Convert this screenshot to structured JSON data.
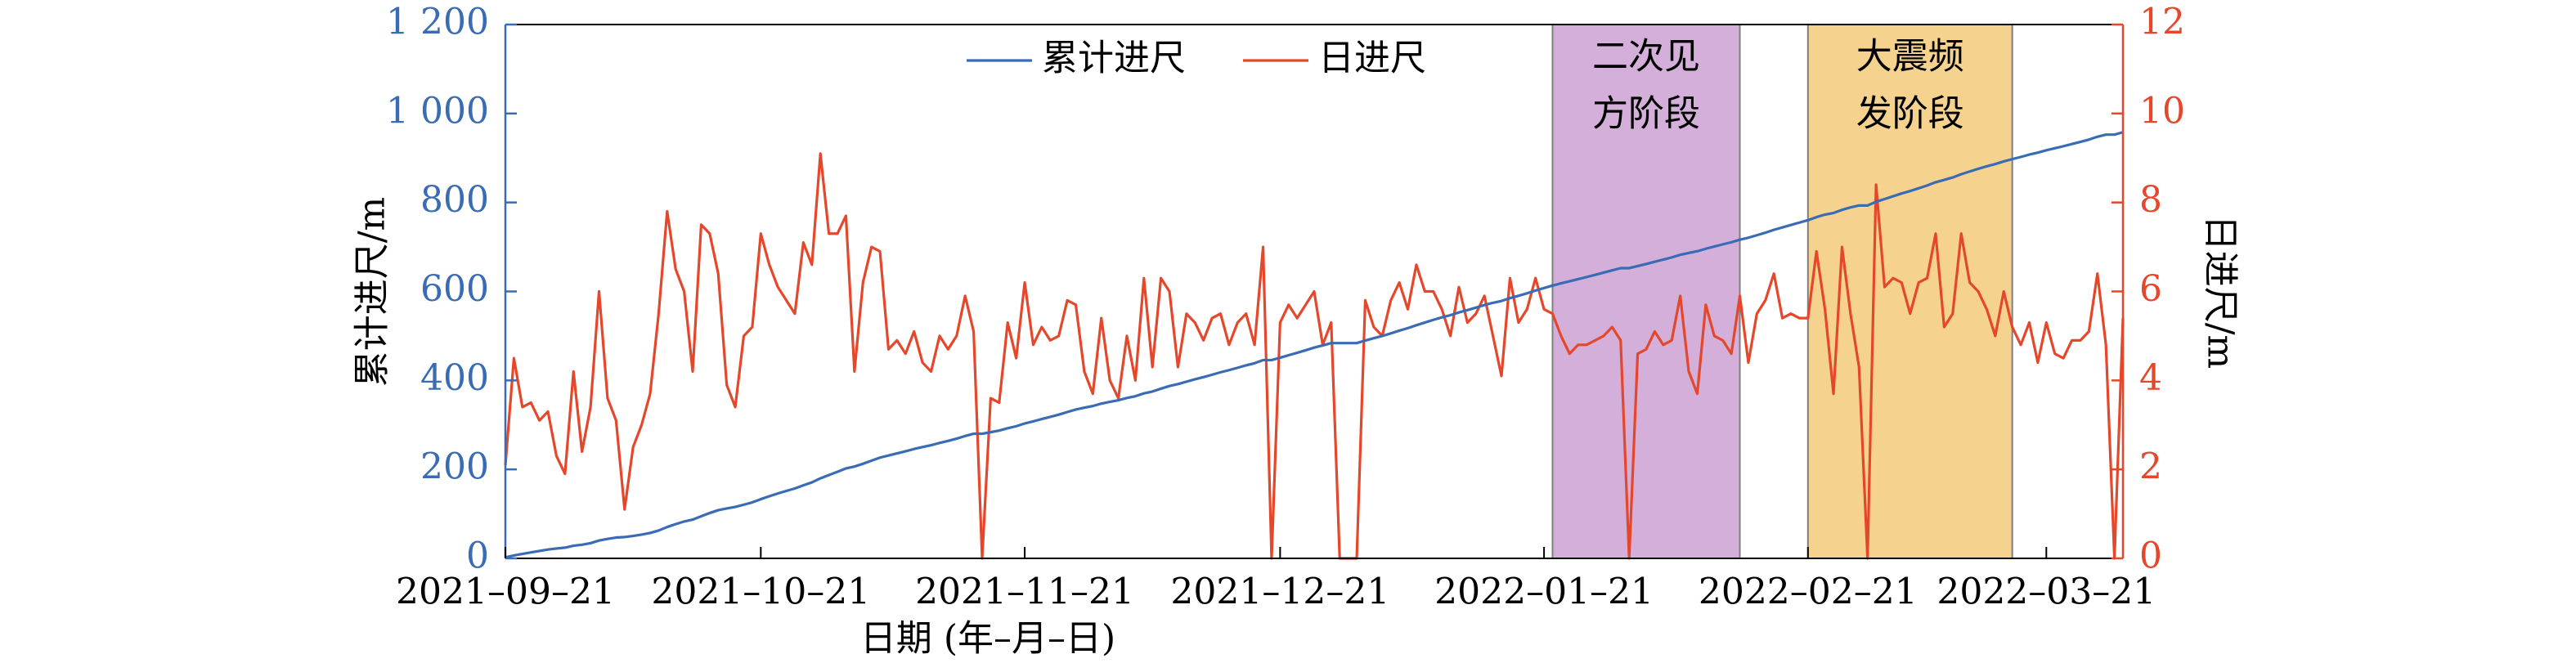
{
  "chart_data": {
    "type": "line",
    "x_label": "日期 (年–月–日)",
    "y_label": "累计进尺/m",
    "y2_label": "日进尺/m",
    "legend": "top",
    "xlim": [
      "2021-09-21",
      "2022-03-30"
    ],
    "xticks": [
      {
        "value": "2021-09-21",
        "label": "2021–09–21"
      },
      {
        "value": "2021-10-21",
        "label": "2021–10–21"
      },
      {
        "value": "2021-11-21",
        "label": "2021–11–21"
      },
      {
        "value": "2021-12-21",
        "label": "2021–12–21"
      },
      {
        "value": "2022-01-21",
        "label": "2022–01–21"
      },
      {
        "value": "2022-02-21",
        "label": "2022–02–21"
      },
      {
        "value": "2022-03-21",
        "label": "2022–03–21"
      }
    ],
    "ylim": [
      0,
      1200
    ],
    "yticks": [
      0,
      200,
      400,
      600,
      800,
      {
        "value": 1000,
        "label": "1 000"
      },
      {
        "value": 1200,
        "label": "1 200"
      }
    ],
    "y2lim": [
      0,
      12
    ],
    "y2ticks": [
      0,
      2,
      4,
      6,
      8,
      10,
      12
    ],
    "annotations": [
      {
        "label_lines": [
          "二次见",
          "方阶段"
        ],
        "x": [
          "2022-01-22",
          "2022-02-13"
        ],
        "color": "#d3afd9"
      },
      {
        "label_lines": [
          "大震频",
          "发阶段"
        ],
        "x": [
          "2022-02-21",
          "2022-03-17"
        ],
        "color": "#f5d38f"
      }
    ],
    "x": [
      "2021-09-21",
      "2021-09-22",
      "2021-09-23",
      "2021-09-24",
      "2021-09-25",
      "2021-09-26",
      "2021-09-27",
      "2021-09-28",
      "2021-09-29",
      "2021-09-30",
      "2021-10-01",
      "2021-10-02",
      "2021-10-03",
      "2021-10-04",
      "2021-10-05",
      "2021-10-06",
      "2021-10-07",
      "2021-10-08",
      "2021-10-09",
      "2021-10-10",
      "2021-10-11",
      "2021-10-12",
      "2021-10-13",
      "2021-10-14",
      "2021-10-15",
      "2021-10-16",
      "2021-10-17",
      "2021-10-18",
      "2021-10-19",
      "2021-10-20",
      "2021-10-21",
      "2021-10-22",
      "2021-10-23",
      "2021-10-24",
      "2021-10-25",
      "2021-10-26",
      "2021-10-27",
      "2021-10-28",
      "2021-10-29",
      "2021-10-30",
      "2021-10-31",
      "2021-11-01",
      "2021-11-02",
      "2021-11-03",
      "2021-11-04",
      "2021-11-05",
      "2021-11-06",
      "2021-11-07",
      "2021-11-08",
      "2021-11-09",
      "2021-11-10",
      "2021-11-11",
      "2021-11-12",
      "2021-11-13",
      "2021-11-14",
      "2021-11-15",
      "2021-11-16",
      "2021-11-17",
      "2021-11-18",
      "2021-11-19",
      "2021-11-20",
      "2021-11-21",
      "2021-11-22",
      "2021-11-23",
      "2021-11-24",
      "2021-11-25",
      "2021-11-26",
      "2021-11-27",
      "2021-11-28",
      "2021-11-29",
      "2021-11-30",
      "2021-12-01",
      "2021-12-02",
      "2021-12-03",
      "2021-12-04",
      "2021-12-05",
      "2021-12-06",
      "2021-12-07",
      "2021-12-08",
      "2021-12-09",
      "2021-12-10",
      "2021-12-11",
      "2021-12-12",
      "2021-12-13",
      "2021-12-14",
      "2021-12-15",
      "2021-12-16",
      "2021-12-17",
      "2021-12-18",
      "2021-12-19",
      "2021-12-20",
      "2021-12-21",
      "2021-12-22",
      "2021-12-23",
      "2021-12-24",
      "2021-12-25",
      "2021-12-26",
      "2021-12-27",
      "2021-12-28",
      "2021-12-29",
      "2021-12-30",
      "2021-12-31",
      "2022-01-01",
      "2022-01-02",
      "2022-01-03",
      "2022-01-04",
      "2022-01-05",
      "2022-01-06",
      "2022-01-07",
      "2022-01-08",
      "2022-01-09",
      "2022-01-10",
      "2022-01-11",
      "2022-01-12",
      "2022-01-13",
      "2022-01-14",
      "2022-01-15",
      "2022-01-16",
      "2022-01-17",
      "2022-01-18",
      "2022-01-19",
      "2022-01-20",
      "2022-01-21",
      "2022-01-22",
      "2022-01-23",
      "2022-01-24",
      "2022-01-25",
      "2022-01-26",
      "2022-01-27",
      "2022-01-28",
      "2022-01-29",
      "2022-01-30",
      "2022-01-31",
      "2022-02-01",
      "2022-02-02",
      "2022-02-03",
      "2022-02-04",
      "2022-02-05",
      "2022-02-06",
      "2022-02-07",
      "2022-02-08",
      "2022-02-09",
      "2022-02-10",
      "2022-02-11",
      "2022-02-12",
      "2022-02-13",
      "2022-02-14",
      "2022-02-15",
      "2022-02-16",
      "2022-02-17",
      "2022-02-18",
      "2022-02-19",
      "2022-02-20",
      "2022-02-21",
      "2022-02-22",
      "2022-02-23",
      "2022-02-24",
      "2022-02-25",
      "2022-02-26",
      "2022-02-27",
      "2022-02-28",
      "2022-03-01",
      "2022-03-02",
      "2022-03-03",
      "2022-03-04",
      "2022-03-05",
      "2022-03-06",
      "2022-03-07",
      "2022-03-08",
      "2022-03-09",
      "2022-03-10",
      "2022-03-11",
      "2022-03-12",
      "2022-03-13",
      "2022-03-14",
      "2022-03-15",
      "2022-03-16",
      "2022-03-17",
      "2022-03-18",
      "2022-03-19",
      "2022-03-20",
      "2022-03-21",
      "2022-03-22",
      "2022-03-23",
      "2022-03-24",
      "2022-03-25",
      "2022-03-26",
      "2022-03-27",
      "2022-03-28",
      "2022-03-29",
      "2022-03-30"
    ],
    "series": [
      {
        "name": "累计进尺",
        "color": "#3a6bb5",
        "axis": "y",
        "values": [
          2.1,
          6.6,
          10.0,
          13.5,
          16.6,
          19.9,
          22.2,
          24.1,
          28.3,
          30.7,
          34.1,
          40.1,
          43.7,
          46.8,
          47.9,
          50.4,
          53.4,
          57.1,
          62.6,
          70.4,
          76.9,
          82.9,
          87.1,
          94.6,
          101.9,
          108.3,
          112.2,
          115.6,
          120.6,
          125.8,
          133.1,
          139.7,
          145.8,
          151.6,
          157.1,
          164.2,
          170.8,
          179.9,
          187.2,
          194.5,
          202.2,
          206.4,
          212.6,
          219.6,
          226.5,
          231.2,
          236.1,
          240.7,
          245.8,
          250.2,
          254.4,
          259.4,
          264.1,
          269.1,
          275.0,
          280.1,
          280.1,
          283.7,
          287.2,
          292.5,
          297.0,
          303.2,
          308.0,
          313.2,
          318.1,
          323.1,
          328.9,
          334.6,
          338.8,
          342.5,
          347.9,
          351.9,
          355.5,
          360.5,
          364.5,
          370.8,
          375.1,
          381.4,
          387.4,
          391.7,
          397.2,
          402.5,
          407.4,
          412.8,
          418.3,
          423.1,
          428.4,
          433.9,
          438.7,
          445.7,
          445.7,
          451.0,
          456.7,
          462.1,
          467.8,
          473.8,
          478.6,
          483.9,
          483.9,
          483.9,
          483.9,
          489.7,
          494.9,
          499.9,
          505.7,
          511.9,
          517.5,
          524.1,
          530.1,
          536.1,
          541.7,
          546.7,
          552.8,
          558.1,
          563.6,
          569.5,
          574.5,
          578.6,
          584.9,
          590.2,
          595.8,
          602.1,
          607.7,
          613.2,
          618.2,
          622.8,
          627.6,
          632.4,
          637.3,
          642.3,
          647.5,
          652.4,
          652.4,
          657.0,
          661.7,
          666.8,
          671.6,
          676.5,
          682.4,
          686.6,
          690.3,
          696.0,
          701.0,
          705.9,
          710.5,
          716.4,
          720.8,
          726.3,
          732.1,
          738.5,
          743.9,
          749.4,
          754.8,
          760.2,
          767.1,
          772.7,
          776.4,
          783.4,
          788.9,
          793.2,
          793.2,
          801.6,
          807.7,
          814.0,
          820.2,
          825.7,
          831.9,
          838.2,
          845.5,
          850.7,
          856.2,
          863.5,
          869.7,
          875.7,
          881.3,
          886.3,
          892.3,
          897.5,
          902.3,
          907.6,
          912.0,
          917.3,
          921.9,
          926.4,
          931.3,
          936.2,
          941.3,
          947.7,
          952.5,
          952.5,
          957.9
        ]
      },
      {
        "name": "日进尺",
        "color": "#e5472b",
        "axis": "y2",
        "values": [
          2.1,
          4.5,
          3.4,
          3.5,
          3.1,
          3.3,
          2.3,
          1.9,
          4.2,
          2.4,
          3.4,
          6.0,
          3.6,
          3.1,
          1.1,
          2.5,
          3.0,
          3.7,
          5.5,
          7.8,
          6.5,
          6.0,
          4.2,
          7.5,
          7.3,
          6.4,
          3.9,
          3.4,
          5.0,
          5.2,
          7.3,
          6.6,
          6.1,
          5.8,
          5.5,
          7.1,
          6.6,
          9.1,
          7.3,
          7.3,
          7.7,
          4.2,
          6.2,
          7.0,
          6.9,
          4.7,
          4.9,
          4.6,
          5.1,
          4.4,
          4.2,
          5.0,
          4.7,
          5.0,
          5.9,
          5.1,
          0,
          3.6,
          3.5,
          5.3,
          4.5,
          6.2,
          4.8,
          5.2,
          4.9,
          5.0,
          5.8,
          5.7,
          4.2,
          3.7,
          5.4,
          4.0,
          3.6,
          5.0,
          4.0,
          6.3,
          4.3,
          6.3,
          6.0,
          4.3,
          5.5,
          5.3,
          4.9,
          5.4,
          5.5,
          4.8,
          5.3,
          5.5,
          4.8,
          7.0,
          0,
          5.3,
          5.7,
          5.4,
          5.7,
          6.0,
          4.8,
          5.3,
          0,
          0,
          0,
          5.8,
          5.2,
          5.0,
          5.8,
          6.2,
          5.6,
          6.6,
          6.0,
          6.0,
          5.6,
          5.0,
          6.1,
          5.3,
          5.5,
          5.9,
          5.0,
          4.1,
          6.3,
          5.3,
          5.6,
          6.3,
          5.6,
          5.5,
          5.0,
          4.6,
          4.8,
          4.8,
          4.9,
          5.0,
          5.2,
          4.9,
          0,
          4.6,
          4.7,
          5.1,
          4.8,
          4.9,
          5.9,
          4.2,
          3.7,
          5.7,
          5.0,
          4.9,
          4.6,
          5.9,
          4.4,
          5.5,
          5.8,
          6.4,
          5.4,
          5.5,
          5.4,
          5.4,
          6.9,
          5.6,
          3.7,
          7.0,
          5.5,
          4.3,
          0,
          8.4,
          6.1,
          6.3,
          6.2,
          5.5,
          6.2,
          6.3,
          7.3,
          5.2,
          5.5,
          7.3,
          6.2,
          6.0,
          5.6,
          5.0,
          6.0,
          5.2,
          4.8,
          5.3,
          4.4,
          5.3,
          4.6,
          4.5,
          4.9,
          4.9,
          5.1,
          6.4,
          4.8,
          0,
          5.4
        ]
      }
    ]
  }
}
